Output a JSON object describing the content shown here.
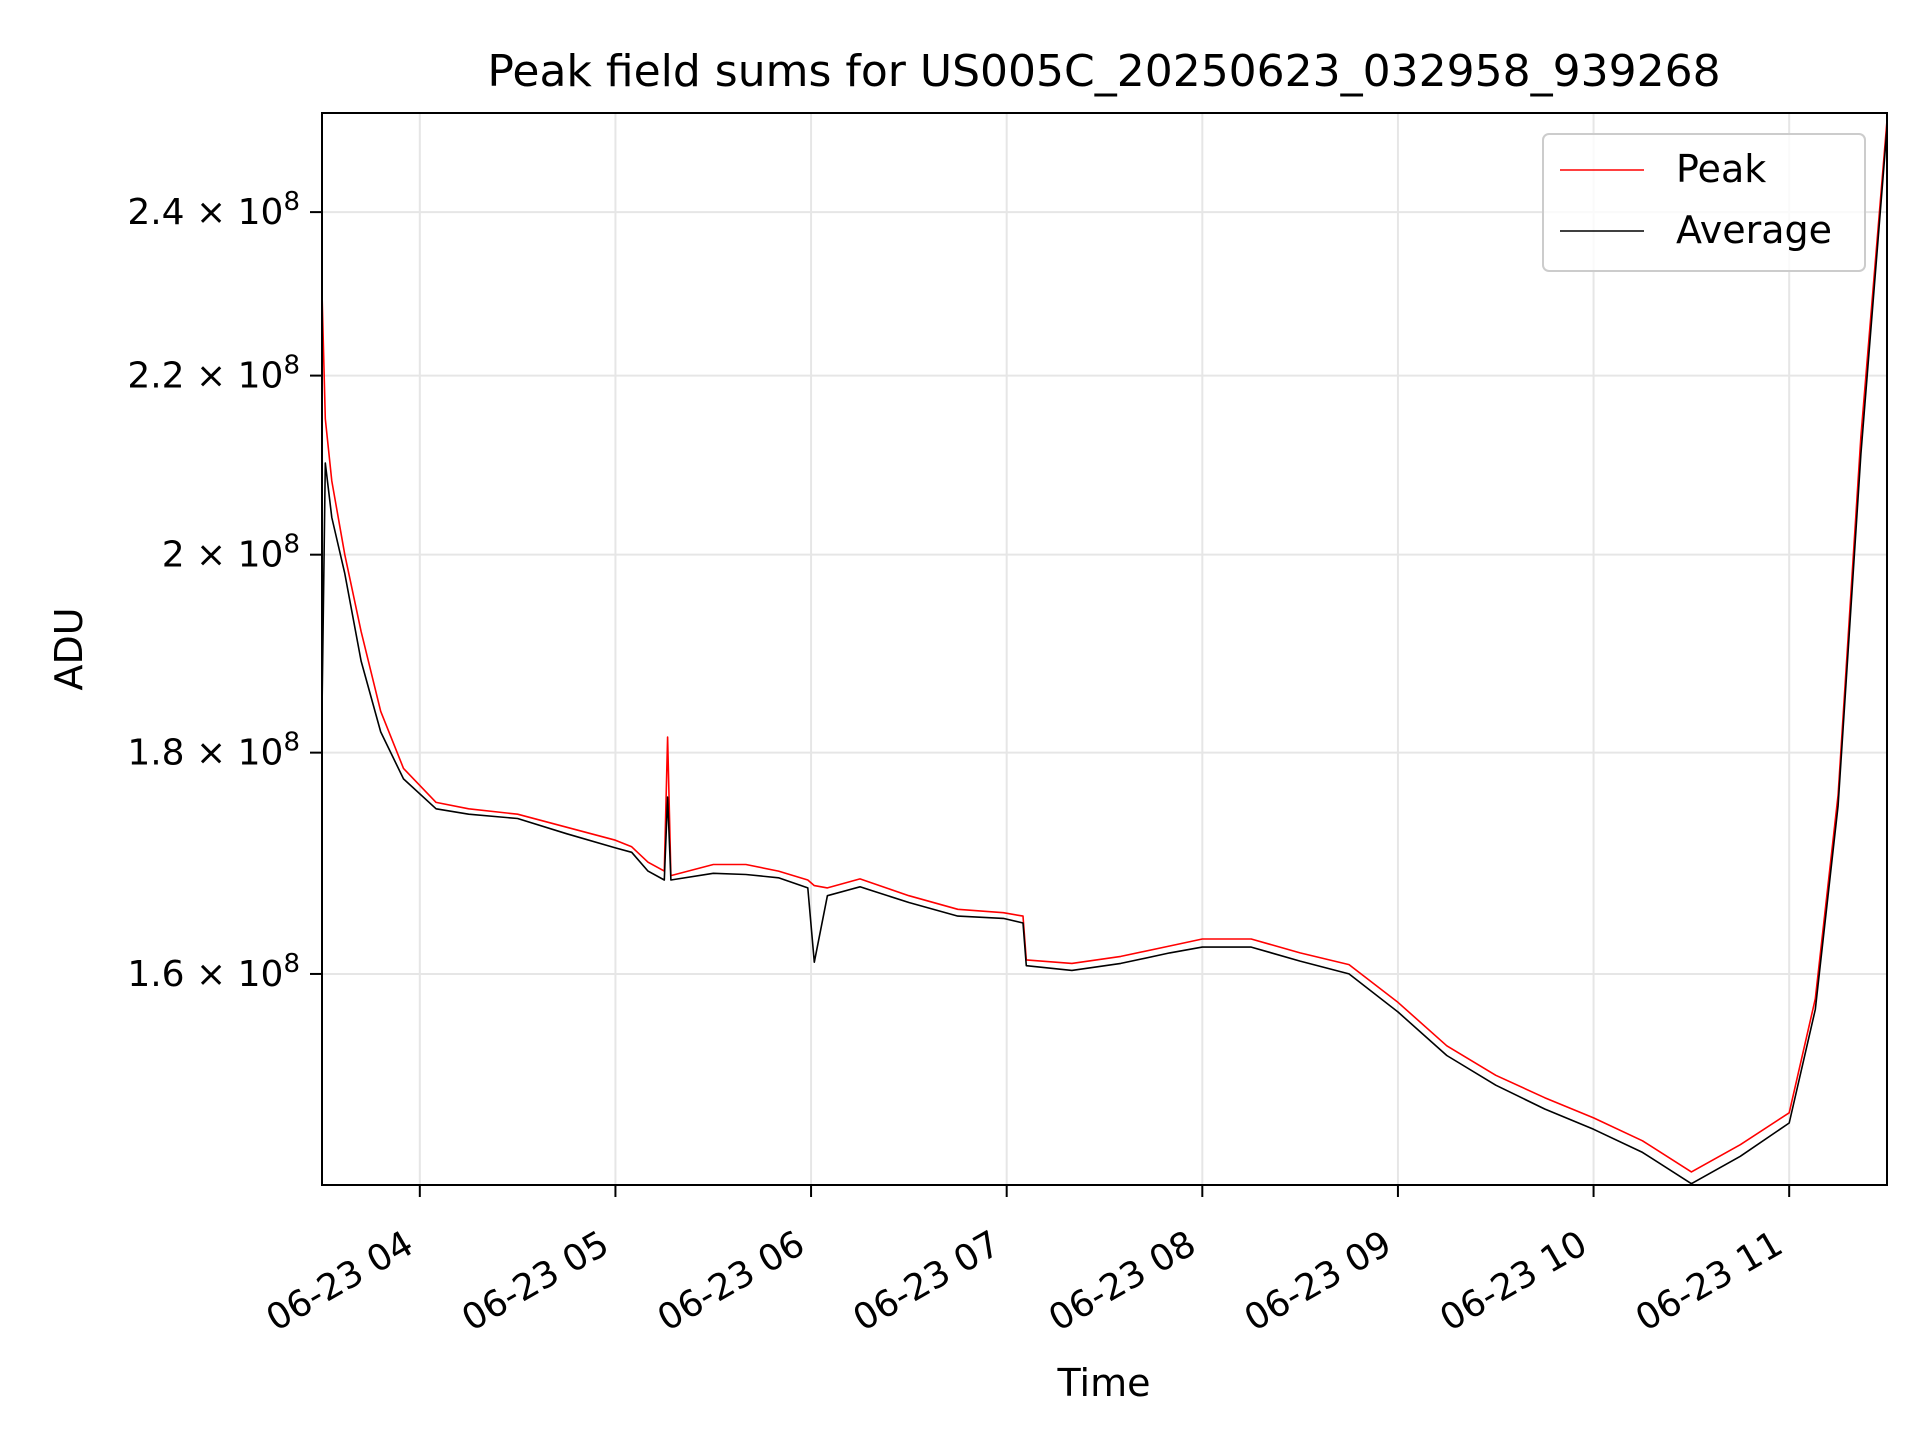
{
  "chart_data": {
    "type": "line",
    "title": "Peak field sums for US005C_20250623_032958_939268",
    "xlabel": "Time",
    "ylabel": "ADU",
    "y_scale": "log",
    "ylim": [
      143000000,
      253000000
    ],
    "xlim": [
      "2025-06-23 03:30",
      "2025-06-23 11:30"
    ],
    "x_ticks": [
      "06-23 04",
      "06-23 05",
      "06-23 06",
      "06-23 07",
      "06-23 08",
      "06-23 09",
      "06-23 10",
      "06-23 11"
    ],
    "x_tick_values": [
      "2025-06-23 04:00",
      "2025-06-23 05:00",
      "2025-06-23 06:00",
      "2025-06-23 07:00",
      "2025-06-23 08:00",
      "2025-06-23 09:00",
      "2025-06-23 10:00",
      "2025-06-23 11:00"
    ],
    "y_ticks": [
      {
        "mantissa": "2.4",
        "value": 240000000
      },
      {
        "mantissa": "2.2",
        "value": 220000000
      },
      {
        "mantissa": "2",
        "value": 200000000
      },
      {
        "mantissa": "1.8",
        "value": 180000000
      },
      {
        "mantissa": "1.6",
        "value": 160000000
      }
    ],
    "y_tick_base": "10",
    "y_tick_exponent": "8",
    "grid": true,
    "legend_position": "top-right",
    "series": [
      {
        "name": "Peak",
        "color": "#ff0000",
        "x": [
          "2025-06-23 03:30",
          "2025-06-23 03:31",
          "2025-06-23 03:33",
          "2025-06-23 03:37",
          "2025-06-23 03:42",
          "2025-06-23 03:48",
          "2025-06-23 03:55",
          "2025-06-23 04:05",
          "2025-06-23 04:15",
          "2025-06-23 04:30",
          "2025-06-23 04:45",
          "2025-06-23 05:00",
          "2025-06-23 05:05",
          "2025-06-23 05:10",
          "2025-06-23 05:15",
          "2025-06-23 05:16",
          "2025-06-23 05:17",
          "2025-06-23 05:30",
          "2025-06-23 05:40",
          "2025-06-23 05:50",
          "2025-06-23 05:59",
          "2025-06-23 06:01",
          "2025-06-23 06:05",
          "2025-06-23 06:15",
          "2025-06-23 06:30",
          "2025-06-23 06:45",
          "2025-06-23 06:59",
          "2025-06-23 07:05",
          "2025-06-23 07:06",
          "2025-06-23 07:20",
          "2025-06-23 07:35",
          "2025-06-23 07:50",
          "2025-06-23 08:00",
          "2025-06-23 08:15",
          "2025-06-23 08:30",
          "2025-06-23 08:45",
          "2025-06-23 09:00",
          "2025-06-23 09:15",
          "2025-06-23 09:30",
          "2025-06-23 09:45",
          "2025-06-23 10:00",
          "2025-06-23 10:15",
          "2025-06-23 10:30",
          "2025-06-23 10:45",
          "2025-06-23 11:00",
          "2025-06-23 11:08",
          "2025-06-23 11:15",
          "2025-06-23 11:22",
          "2025-06-23 11:30"
        ],
        "values": [
          230000000,
          215000000,
          208000000,
          200000000,
          192000000,
          184000000,
          178500000,
          175300000,
          174700000,
          174200000,
          173000000,
          171800000,
          171200000,
          169800000,
          169000000,
          181500000,
          168600000,
          169600000,
          169600000,
          169000000,
          168200000,
          167700000,
          167500000,
          168300000,
          166800000,
          165600000,
          165300000,
          165000000,
          161200000,
          160900000,
          161500000,
          162400000,
          163000000,
          163000000,
          161800000,
          160800000,
          157600000,
          154000000,
          151600000,
          149800000,
          148200000,
          146400000,
          144000000,
          146100000,
          148600000,
          157900000,
          176000000,
          213000000,
          252000000
        ]
      },
      {
        "name": "Average",
        "color": "#000000",
        "x": [
          "2025-06-23 03:30",
          "2025-06-23 03:31",
          "2025-06-23 03:33",
          "2025-06-23 03:37",
          "2025-06-23 03:42",
          "2025-06-23 03:48",
          "2025-06-23 03:55",
          "2025-06-23 04:05",
          "2025-06-23 04:15",
          "2025-06-23 04:30",
          "2025-06-23 04:45",
          "2025-06-23 05:00",
          "2025-06-23 05:05",
          "2025-06-23 05:10",
          "2025-06-23 05:15",
          "2025-06-23 05:16",
          "2025-06-23 05:17",
          "2025-06-23 05:30",
          "2025-06-23 05:40",
          "2025-06-23 05:50",
          "2025-06-23 05:59",
          "2025-06-23 06:01",
          "2025-06-23 06:05",
          "2025-06-23 06:15",
          "2025-06-23 06:30",
          "2025-06-23 06:45",
          "2025-06-23 06:59",
          "2025-06-23 07:05",
          "2025-06-23 07:06",
          "2025-06-23 07:20",
          "2025-06-23 07:35",
          "2025-06-23 07:50",
          "2025-06-23 08:00",
          "2025-06-23 08:15",
          "2025-06-23 08:30",
          "2025-06-23 08:45",
          "2025-06-23 09:00",
          "2025-06-23 09:15",
          "2025-06-23 09:30",
          "2025-06-23 09:45",
          "2025-06-23 10:00",
          "2025-06-23 10:15",
          "2025-06-23 10:30",
          "2025-06-23 10:45",
          "2025-06-23 11:00",
          "2025-06-23 11:08",
          "2025-06-23 11:15",
          "2025-06-23 11:22",
          "2025-06-23 11:30"
        ],
        "values": [
          184000000,
          210000000,
          204000000,
          198000000,
          189000000,
          182000000,
          177500000,
          174700000,
          174200000,
          173800000,
          172400000,
          171100000,
          170700000,
          169000000,
          168200000,
          175800000,
          168200000,
          168800000,
          168700000,
          168400000,
          167500000,
          161000000,
          166800000,
          167600000,
          166200000,
          165000000,
          164800000,
          164400000,
          160700000,
          160300000,
          160900000,
          161800000,
          162300000,
          162300000,
          161100000,
          160000000,
          156800000,
          153200000,
          150800000,
          148900000,
          147300000,
          145500000,
          143100000,
          145200000,
          147800000,
          157000000,
          175000000,
          211000000,
          251000000
        ]
      }
    ]
  }
}
